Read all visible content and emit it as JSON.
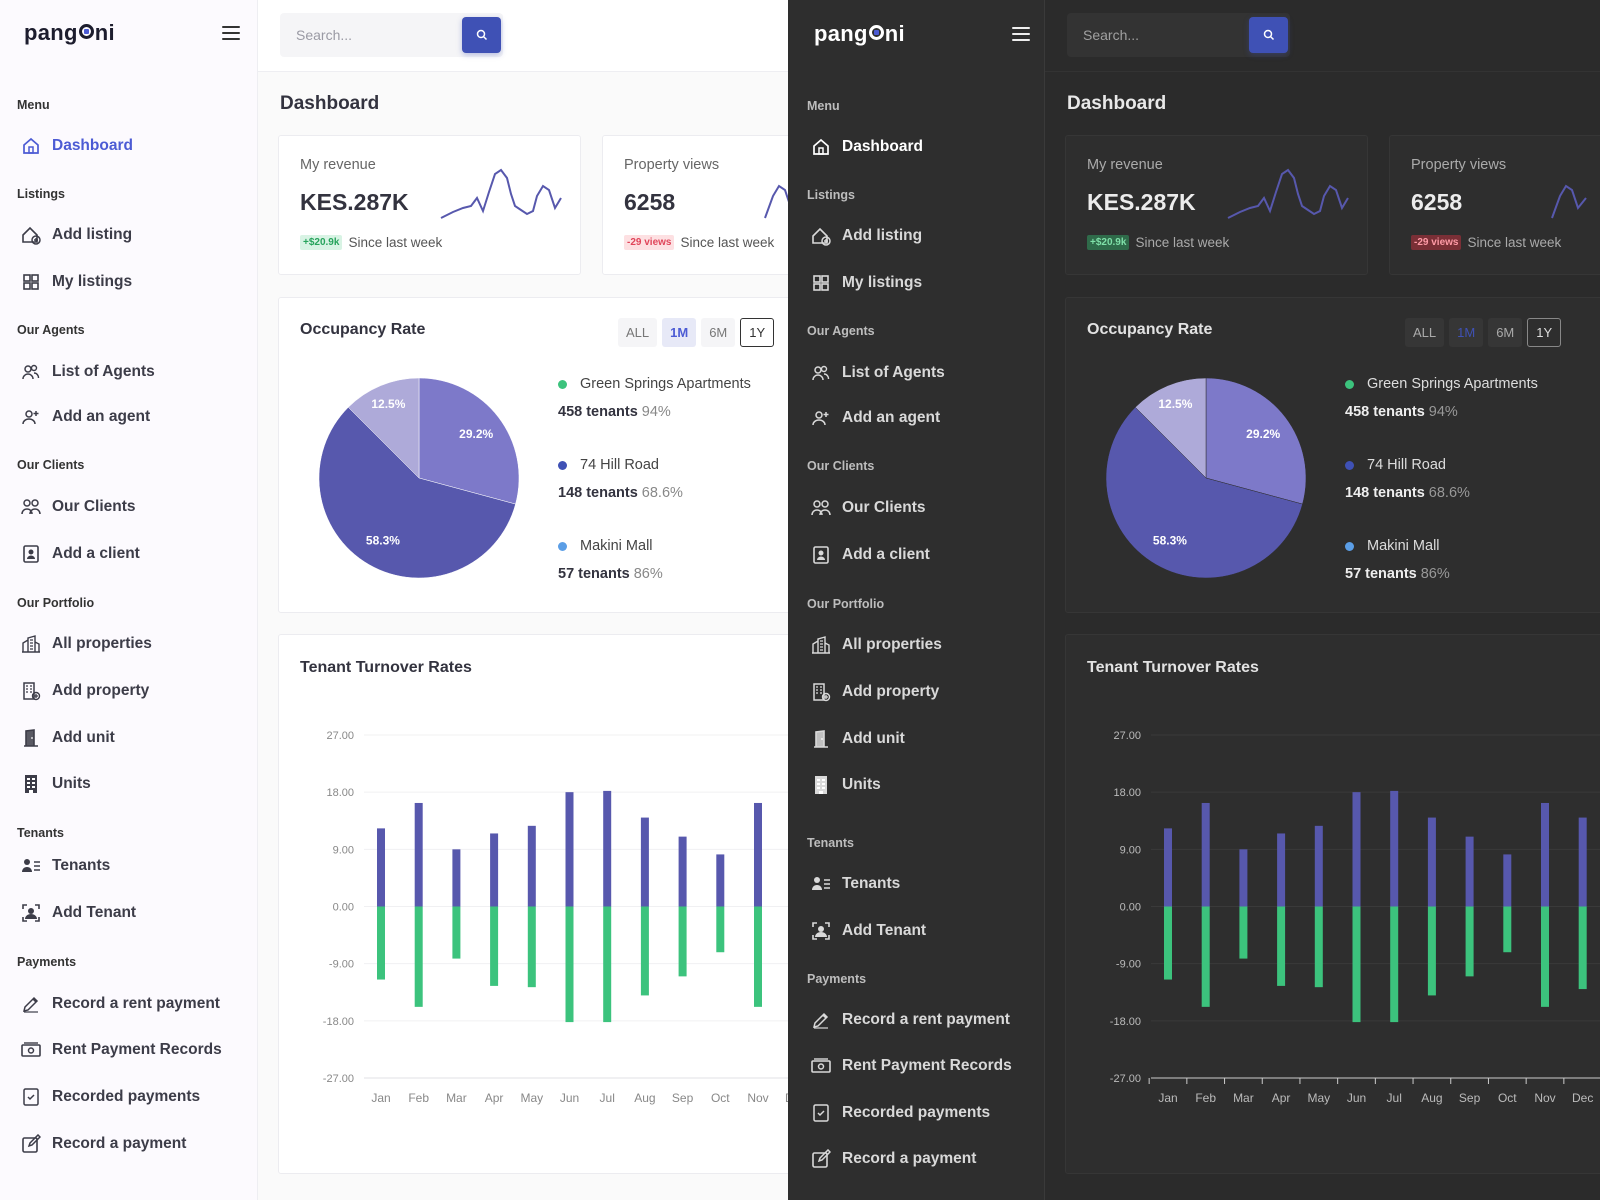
{
  "brand": {
    "logo_left": "pang",
    "logo_right": "ni"
  },
  "search": {
    "placeholder": "Search..."
  },
  "page_title": "Dashboard",
  "sidebar": {
    "sections": [
      {
        "title": "Menu",
        "items": [
          {
            "label": "Dashboard",
            "icon": "home-icon",
            "active": true
          }
        ]
      },
      {
        "title": "Listings",
        "items": [
          {
            "label": "Add listing",
            "icon": "add-home-icon"
          },
          {
            "label": "My listings",
            "icon": "grid-icon"
          }
        ]
      },
      {
        "title": "Our Agents",
        "items": [
          {
            "label": "List of Agents",
            "icon": "users-icon"
          },
          {
            "label": "Add an agent",
            "icon": "user-plus-icon"
          }
        ]
      },
      {
        "title": "Our Clients",
        "items": [
          {
            "label": "Our Clients",
            "icon": "clients-icon"
          },
          {
            "label": "Add a client",
            "icon": "contact-card-icon"
          }
        ]
      },
      {
        "title": "Our Portfolio",
        "items": [
          {
            "label": "All properties",
            "icon": "city-icon"
          },
          {
            "label": "Add property",
            "icon": "building-plus-icon"
          },
          {
            "label": "Add unit",
            "icon": "door-icon"
          },
          {
            "label": "Units",
            "icon": "building-icon"
          }
        ]
      },
      {
        "title": "Tenants",
        "items": [
          {
            "label": "Tenants",
            "icon": "tenant-list-icon"
          },
          {
            "label": "Add Tenant",
            "icon": "tenant-frame-icon"
          }
        ]
      },
      {
        "title": "Payments",
        "items": [
          {
            "label": "Record a rent payment",
            "icon": "pen-icon"
          },
          {
            "label": "Rent Payment Records",
            "icon": "cash-icon"
          },
          {
            "label": "Recorded payments",
            "icon": "checklist-icon"
          },
          {
            "label": "Record a payment",
            "icon": "edit-box-icon"
          }
        ]
      }
    ]
  },
  "stats": [
    {
      "label": "My revenue",
      "value": "KES.287K",
      "badge": "+$20.9k",
      "trend": "up",
      "foot": "Since last week"
    },
    {
      "label": "Property views",
      "value": "6258",
      "badge": "-29 views",
      "trend": "down",
      "foot": "Since last week"
    }
  ],
  "occupancy": {
    "title": "Occupancy Rate",
    "ranges": [
      "ALL",
      "1M",
      "6M",
      "1Y"
    ],
    "selected_range": "1M",
    "outlined_range": "1Y",
    "properties": [
      {
        "name": "Green Springs Apartments",
        "tenants": "458 tenants",
        "pct": "94%",
        "color": "#3cc37d"
      },
      {
        "name": "74 Hill Road",
        "tenants": "148 tenants",
        "pct": "68.6%",
        "color": "#3f51b5"
      },
      {
        "name": "Makini Mall",
        "tenants": "57 tenants",
        "pct": "86%",
        "color": "#5b9ee6"
      }
    ]
  },
  "chart_data": [
    {
      "type": "pie",
      "title": "Occupancy Rate",
      "labels": [
        "29.2%",
        "58.3%",
        "12.5%"
      ],
      "values": [
        29.2,
        58.3,
        12.5
      ],
      "colors": [
        "#7d79c9",
        "#5758ad",
        "#aeaad9"
      ]
    },
    {
      "type": "bar",
      "title": "Tenant Turnover Rates",
      "categories": [
        "Jan",
        "Feb",
        "Mar",
        "Apr",
        "May",
        "Jun",
        "Jul",
        "Aug",
        "Sep",
        "Oct",
        "Nov",
        "Dec"
      ],
      "y_ticks": [
        "27.00",
        "18.00",
        "9.00",
        "0.00",
        "-9.00",
        "-18.00",
        "-27.00"
      ],
      "ylim": [
        -27,
        27
      ],
      "series": [
        {
          "values": [
            12.3,
            16.3,
            9.0,
            11.5,
            12.7,
            18.0,
            18.2,
            14.0,
            11.0,
            8.2,
            16.3,
            14.0
          ],
          "color": "#5758ad"
        },
        {
          "values": [
            -11.5,
            -15.8,
            -8.2,
            -12.5,
            -12.7,
            -18.2,
            -18.2,
            -14.0,
            -11.0,
            -7.2,
            -15.8,
            -13.0
          ],
          "color": "#3cc37d"
        }
      ],
      "grid": true
    }
  ]
}
